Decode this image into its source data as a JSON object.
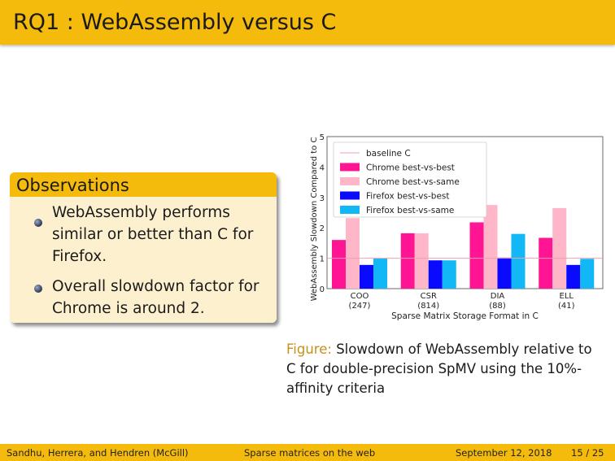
{
  "slide": {
    "title": "RQ1 : WebAssembly versus C",
    "block_title": "Observations",
    "bullets": [
      "WebAssembly performs similar or better than C for Firefox.",
      "Overall slowdown factor for Chrome is around 2."
    ],
    "caption_label": "Figure:",
    "caption_text": "Slowdown of WebAssembly relative to C for double-precision SpMV using the 10%-affinity criteria"
  },
  "footer": {
    "authors": "Sandhu, Herrera, and Hendren (McGill)",
    "talk": "Sparse matrices on the web",
    "date": "September 12, 2018",
    "page": "15 / 25"
  },
  "chart_data": {
    "type": "bar",
    "xlabel": "Sparse Matrix Storage Format in C",
    "ylabel": "WebAssembly Slowdown Compared to C",
    "ylim": [
      0,
      5
    ],
    "yticks": [
      "0",
      "1",
      "2",
      "3",
      "4",
      "5"
    ],
    "categories": [
      "COO",
      "CSR",
      "DIA",
      "ELL"
    ],
    "category_counts": [
      "(247)",
      "(814)",
      "(88)",
      "(41)"
    ],
    "baseline": {
      "name": "baseline C",
      "value": 1,
      "color": "#f0a0b0"
    },
    "legend_position": "top-left",
    "series": [
      {
        "name": "Chrome best-vs-best",
        "color": "#ff1493",
        "values": [
          1.6,
          1.82,
          2.18,
          1.67
        ]
      },
      {
        "name": "Chrome best-vs-same",
        "color": "#ffb6c8",
        "values": [
          2.32,
          1.82,
          2.75,
          2.65
        ]
      },
      {
        "name": "Firefox best-vs-best",
        "color": "#0a0aff",
        "values": [
          0.78,
          0.93,
          1.02,
          0.78
        ]
      },
      {
        "name": "Firefox best-vs-same",
        "color": "#12b8f5",
        "values": [
          1.0,
          0.93,
          1.8,
          0.98
        ]
      }
    ]
  }
}
